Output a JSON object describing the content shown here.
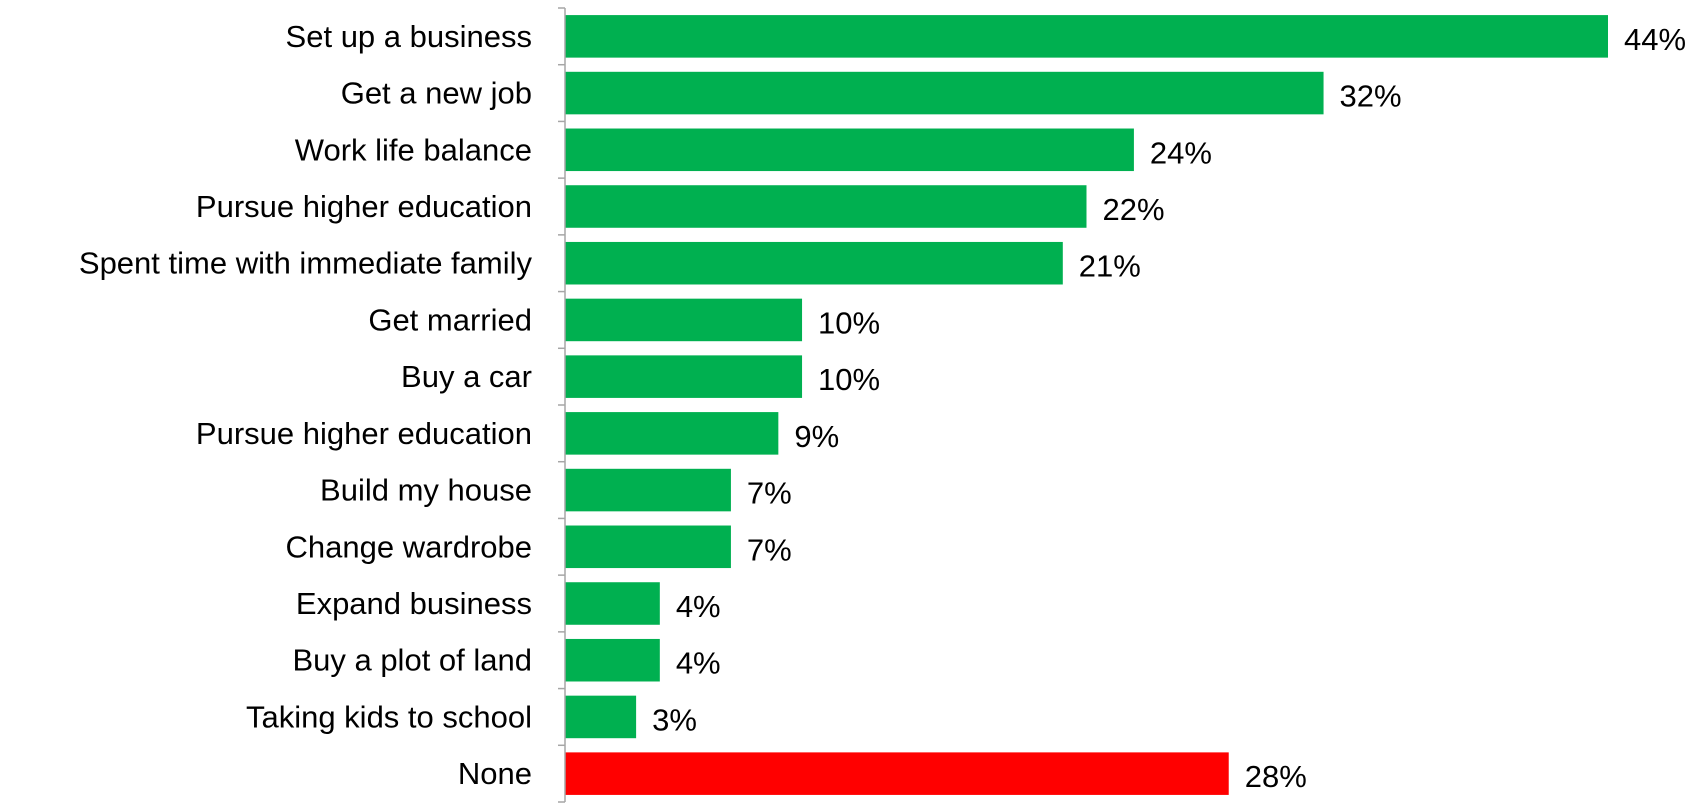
{
  "chart_data": {
    "type": "bar",
    "orientation": "horizontal",
    "categories": [
      "Set up a business",
      "Get a new job",
      "Work life balance",
      "Pursue higher education",
      "Spent time with immediate family",
      "Get married",
      "Buy a car",
      "Pursue higher education",
      "Build my house",
      "Change wardrobe",
      "Expand business",
      "Buy a plot of land",
      "Taking kids to school",
      "None"
    ],
    "values": [
      44,
      32,
      24,
      22,
      21,
      10,
      10,
      9,
      7,
      7,
      4,
      4,
      3,
      28
    ],
    "value_labels": [
      "44%",
      "32%",
      "24%",
      "22%",
      "21%",
      "10%",
      "10%",
      "9%",
      "7%",
      "7%",
      "4%",
      "4%",
      "3%",
      "28%"
    ],
    "bar_colors": [
      "#00b050",
      "#00b050",
      "#00b050",
      "#00b050",
      "#00b050",
      "#00b050",
      "#00b050",
      "#00b050",
      "#00b050",
      "#00b050",
      "#00b050",
      "#00b050",
      "#00b050",
      "#ff0000"
    ],
    "axis_color": "#a6a6a6",
    "xlim": [
      0,
      44
    ],
    "grid": false,
    "legend": "none"
  }
}
